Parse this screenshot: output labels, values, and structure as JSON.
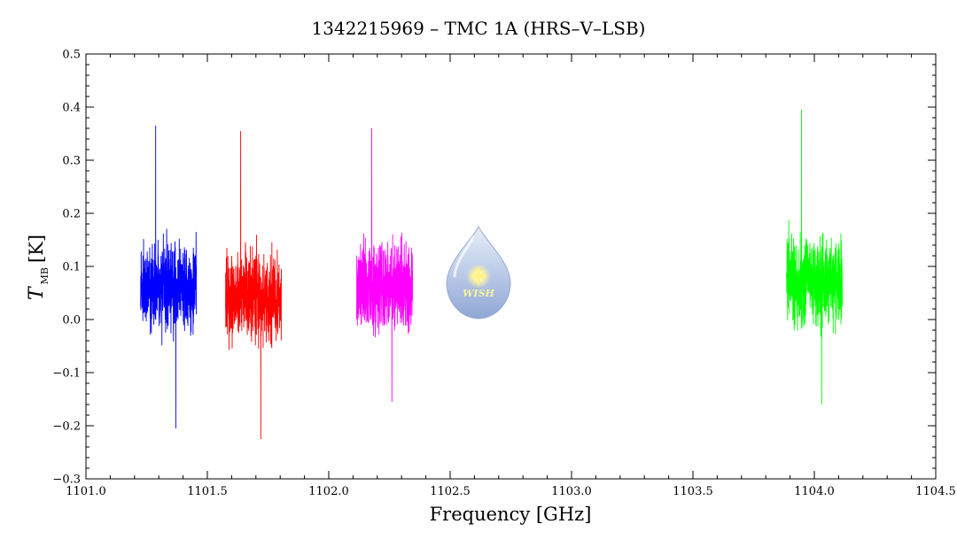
{
  "chart_data": {
    "type": "line",
    "title": "1342215969 – TMC 1A (HRS–V–LSB)",
    "xlabel": "Frequency [GHz]",
    "ylabel": {
      "main": "T",
      "sub": "MB",
      "unit": "[K]"
    },
    "xlim": [
      1101.0,
      1104.5
    ],
    "ylim": [
      -0.3,
      0.5
    ],
    "xticks": [
      "1101.0",
      "1101.5",
      "1102.0",
      "1102.5",
      "1103.0",
      "1103.5",
      "1104.0",
      "1104.5"
    ],
    "yticks": [
      "−0.3",
      "−0.2",
      "−0.1",
      "0.0",
      "0.1",
      "0.2",
      "0.3",
      "0.4",
      "0.5"
    ],
    "grid": false,
    "series": [
      {
        "color": "#0000ff",
        "x_range": [
          1101.225,
          1101.455
        ],
        "baseline": 0.06,
        "noise_min": -0.205,
        "noise_max": 0.365
      },
      {
        "color": "#ff0000",
        "x_range": [
          1101.575,
          1101.805
        ],
        "baseline": 0.04,
        "noise_min": -0.225,
        "noise_max": 0.355
      },
      {
        "color": "#ff00ff",
        "x_range": [
          1102.115,
          1102.345
        ],
        "baseline": 0.06,
        "noise_min": -0.155,
        "noise_max": 0.36
      },
      {
        "color": "#00ff00",
        "x_range": [
          1103.885,
          1104.115
        ],
        "baseline": 0.07,
        "noise_min": -0.16,
        "noise_max": 0.395
      }
    ]
  },
  "logo": {
    "text": "WISH",
    "name": "wish-logo"
  }
}
